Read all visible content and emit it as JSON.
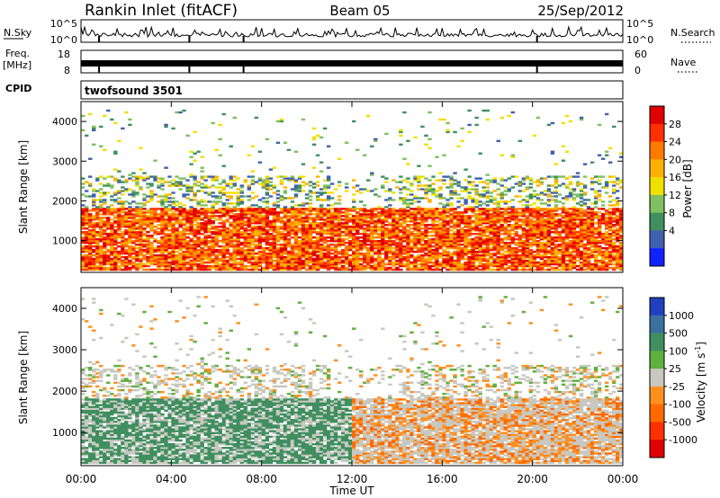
{
  "header": {
    "station": "Rankin Inlet (fitACF)",
    "beam": "Beam 05",
    "date": "25/Sep/2012"
  },
  "strips": {
    "nsky": {
      "label": "N.Sky",
      "ticks": [
        "10^5",
        "10^0"
      ]
    },
    "nsearch": {
      "label": "N.Search",
      "ticks": [
        "10^5",
        "10^0"
      ]
    },
    "freq": {
      "label1": "Freq.",
      "label2": "[MHz]",
      "ticks": [
        "18",
        "8"
      ]
    },
    "nave": {
      "label": "Nave",
      "ticks": [
        "60",
        "0"
      ]
    },
    "cpid": {
      "label": "CPID",
      "value": "twofsound 3501"
    }
  },
  "chart_data": [
    {
      "type": "heatmap",
      "name_label": "Power [dB]",
      "ylabel": "Slant Range [km]",
      "xlabel": "Time UT",
      "xticks": [
        "00:00",
        "04:00",
        "08:00",
        "12:00",
        "16:00",
        "20:00",
        "00:00"
      ],
      "yticks": [
        "1000",
        "2000",
        "3000",
        "4000"
      ],
      "ylim": [
        200,
        4500
      ],
      "colorbar": {
        "labels": [
          "28",
          "24",
          "20",
          "16",
          "12",
          "8",
          "4"
        ],
        "colors": [
          "#e00000",
          "#ff3000",
          "#ff7a00",
          "#ffb000",
          "#f0e000",
          "#7fc060",
          "#3f8f5f",
          "#4060b0",
          "#1020ff"
        ]
      },
      "bands": [
        {
          "range_km": [
            500,
            1800
          ],
          "dominant": "red/orange, 20-30 dB"
        },
        {
          "range_km": [
            1800,
            2600
          ],
          "dominant": "mixed green/yellow/blue, 4-20 dB"
        },
        {
          "range_km": [
            2600,
            4300
          ],
          "dominant": "sparse scatter"
        }
      ]
    },
    {
      "type": "heatmap",
      "name_label": "Velocity [m s",
      "name_label_sup": "-1",
      "name_label_end": "]",
      "ylabel": "Slant Range [km]",
      "xlabel": "Time UT",
      "xticks": [
        "00:00",
        "04:00",
        "08:00",
        "12:00",
        "16:00",
        "20:00",
        "00:00"
      ],
      "yticks": [
        "1000",
        "2000",
        "3000",
        "4000"
      ],
      "ylim": [
        200,
        4500
      ],
      "colorbar": {
        "labels": [
          "1000",
          "500",
          "100",
          "25",
          "-25",
          "-100",
          "-500",
          "-1000"
        ],
        "colors": [
          "#2040c0",
          "#3a70a0",
          "#3f8f5f",
          "#60b040",
          "#c8c8c0",
          "#ff9020",
          "#ff6a00",
          "#ff3000",
          "#e00000"
        ]
      },
      "bands": [
        {
          "range_km": [
            500,
            1800
          ],
          "dominant": "green (00-12 UT), grey/orange (12-24 UT)"
        },
        {
          "range_km": [
            1800,
            2600
          ],
          "dominant": "grey with green/orange"
        }
      ]
    }
  ]
}
